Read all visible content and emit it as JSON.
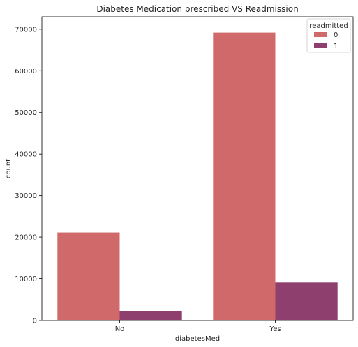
{
  "chart_data": {
    "type": "bar",
    "title": "Diabetes Medication prescribed VS Readmission",
    "xlabel": "diabetesMed",
    "ylabel": "count",
    "categories": [
      "No",
      "Yes"
    ],
    "series": [
      {
        "name": "0",
        "values": [
          21100,
          69200
        ],
        "color": "#d06a6a"
      },
      {
        "name": "1",
        "values": [
          2300,
          9200
        ],
        "color": "#8e3f6d"
      }
    ],
    "ylim": [
      0,
      73000
    ],
    "yticks": [
      0,
      10000,
      20000,
      30000,
      40000,
      50000,
      60000,
      70000
    ],
    "legend": {
      "title": "readmitted",
      "placement": "top-right"
    },
    "grid": false
  }
}
